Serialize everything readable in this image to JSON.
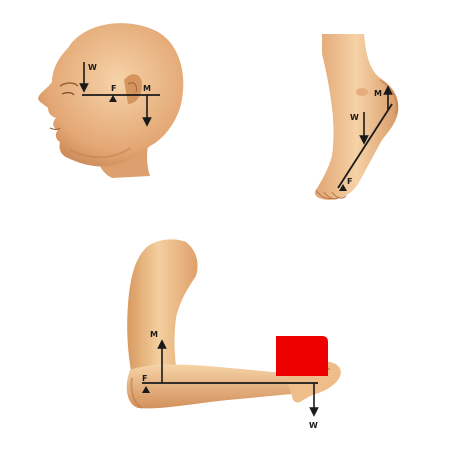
{
  "panels": {
    "head": {
      "effort_label": "M",
      "load_label": "W",
      "fulcrum_label": "F"
    },
    "foot": {
      "effort_label": "M",
      "load_label": "W",
      "fulcrum_label": "F"
    },
    "arm": {
      "effort_label": "M",
      "load_label": "W",
      "fulcrum_label": "F"
    }
  },
  "colors": {
    "skin": "#f2c796",
    "skin_shadow": "#d99b64",
    "skin_dark": "#b9774a",
    "weight_block": "#ee0000",
    "lever_line": "#1a1a1a"
  }
}
